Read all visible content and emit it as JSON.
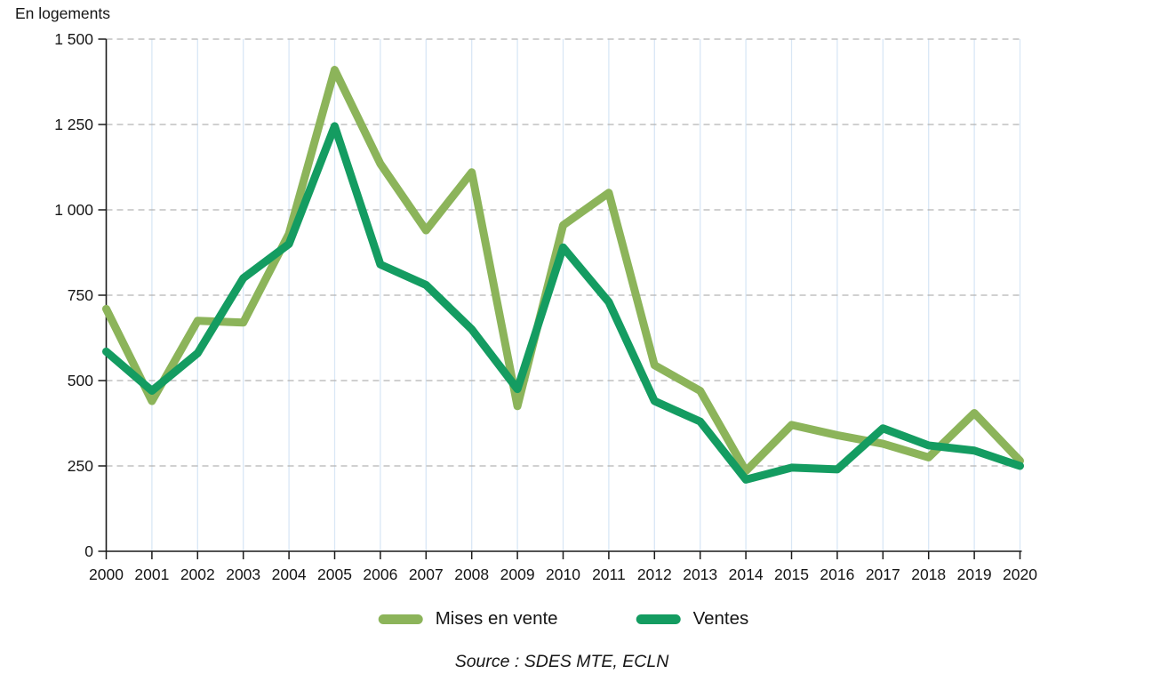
{
  "unit_label": "En logements",
  "source": "Source : SDES MTE, ECLN",
  "colors": {
    "axis": "#1a1a1a",
    "text": "#161616",
    "grid_vertical": "#d9e7f5",
    "grid_horizontal": "#b3b3b3",
    "background": "#ffffff"
  },
  "chart_data": {
    "type": "line",
    "title": "",
    "ylabel": "En logements",
    "xlabel": "",
    "categories": [
      "2000",
      "2001",
      "2002",
      "2003",
      "2004",
      "2005",
      "2006",
      "2007",
      "2008",
      "2009",
      "2010",
      "2011",
      "2012",
      "2013",
      "2014",
      "2015",
      "2016",
      "2017",
      "2018",
      "2019",
      "2020"
    ],
    "series": [
      {
        "name": "Mises en vente",
        "color": "#8CB45A",
        "values": [
          710,
          440,
          675,
          670,
          930,
          1410,
          1135,
          940,
          1110,
          425,
          955,
          1050,
          545,
          470,
          235,
          370,
          340,
          315,
          275,
          405,
          265
        ]
      },
      {
        "name": "Ventes",
        "color": "#149C61",
        "values": [
          585,
          470,
          580,
          800,
          900,
          1245,
          840,
          780,
          650,
          475,
          890,
          730,
          440,
          380,
          210,
          245,
          240,
          360,
          310,
          295,
          250
        ]
      }
    ],
    "ylim": [
      0,
      1500
    ],
    "y_ticks": [
      {
        "value": 0,
        "label": "0"
      },
      {
        "value": 250,
        "label": "250"
      },
      {
        "value": 500,
        "label": "500"
      },
      {
        "value": 750,
        "label": "750"
      },
      {
        "value": 1000,
        "label": "1 000"
      },
      {
        "value": 1250,
        "label": "1 250"
      },
      {
        "value": 1500,
        "label": "1 500"
      }
    ],
    "grid": {
      "horizontal": "dashed",
      "vertical": "solid"
    },
    "legend_position": "bottom"
  }
}
